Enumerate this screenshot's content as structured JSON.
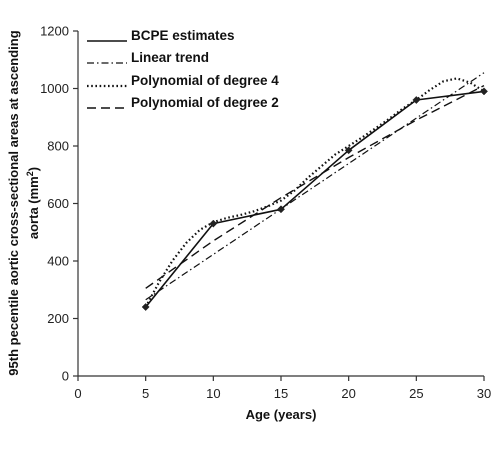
{
  "chart_data": {
    "type": "line",
    "title": "",
    "xlabel": "Age (years)",
    "ylabel_line1": "95th pecentile aortic cross-sectional areas at ascending",
    "ylabel_line2_prefix": "aorta (mm",
    "ylabel_line2_sup": "2",
    "ylabel_line2_suffix": ")",
    "xlim": [
      0,
      30
    ],
    "ylim": [
      0,
      1200
    ],
    "x_ticks": [
      0,
      5,
      10,
      15,
      20,
      25,
      30
    ],
    "y_ticks": [
      0,
      200,
      400,
      600,
      800,
      1000,
      1200
    ],
    "grid": false,
    "legend_position": "top-left",
    "series": [
      {
        "name": "BCPE estimates",
        "style": "solid",
        "markers": true,
        "x": [
          5,
          10,
          15,
          20,
          25,
          30
        ],
        "y": [
          240,
          530,
          580,
          785,
          960,
          990
        ]
      },
      {
        "name": "Linear trend",
        "style": "dashdot",
        "markers": false,
        "x": [
          5,
          30
        ],
        "y": [
          265,
          1055
        ]
      },
      {
        "name": "Polynomial of degree 4",
        "style": "dotted",
        "markers": false,
        "x": [
          5,
          6,
          7,
          8,
          9,
          10,
          11,
          12,
          13,
          14,
          15,
          16,
          17,
          18,
          19,
          20,
          21,
          22,
          23,
          24,
          25,
          26,
          27,
          28,
          29,
          30
        ],
        "y": [
          240,
          327,
          402,
          463,
          508,
          535,
          550,
          560,
          573,
          590,
          610,
          645,
          690,
          730,
          770,
          800,
          830,
          862,
          895,
          930,
          960,
          995,
          1025,
          1035,
          1020,
          990
        ]
      },
      {
        "name": "Polynomial of degree 2",
        "style": "dashed",
        "markers": false,
        "x": [
          5,
          10,
          15,
          20,
          25,
          30
        ],
        "y": [
          305,
          470,
          620,
          760,
          890,
          1010
        ]
      }
    ]
  }
}
